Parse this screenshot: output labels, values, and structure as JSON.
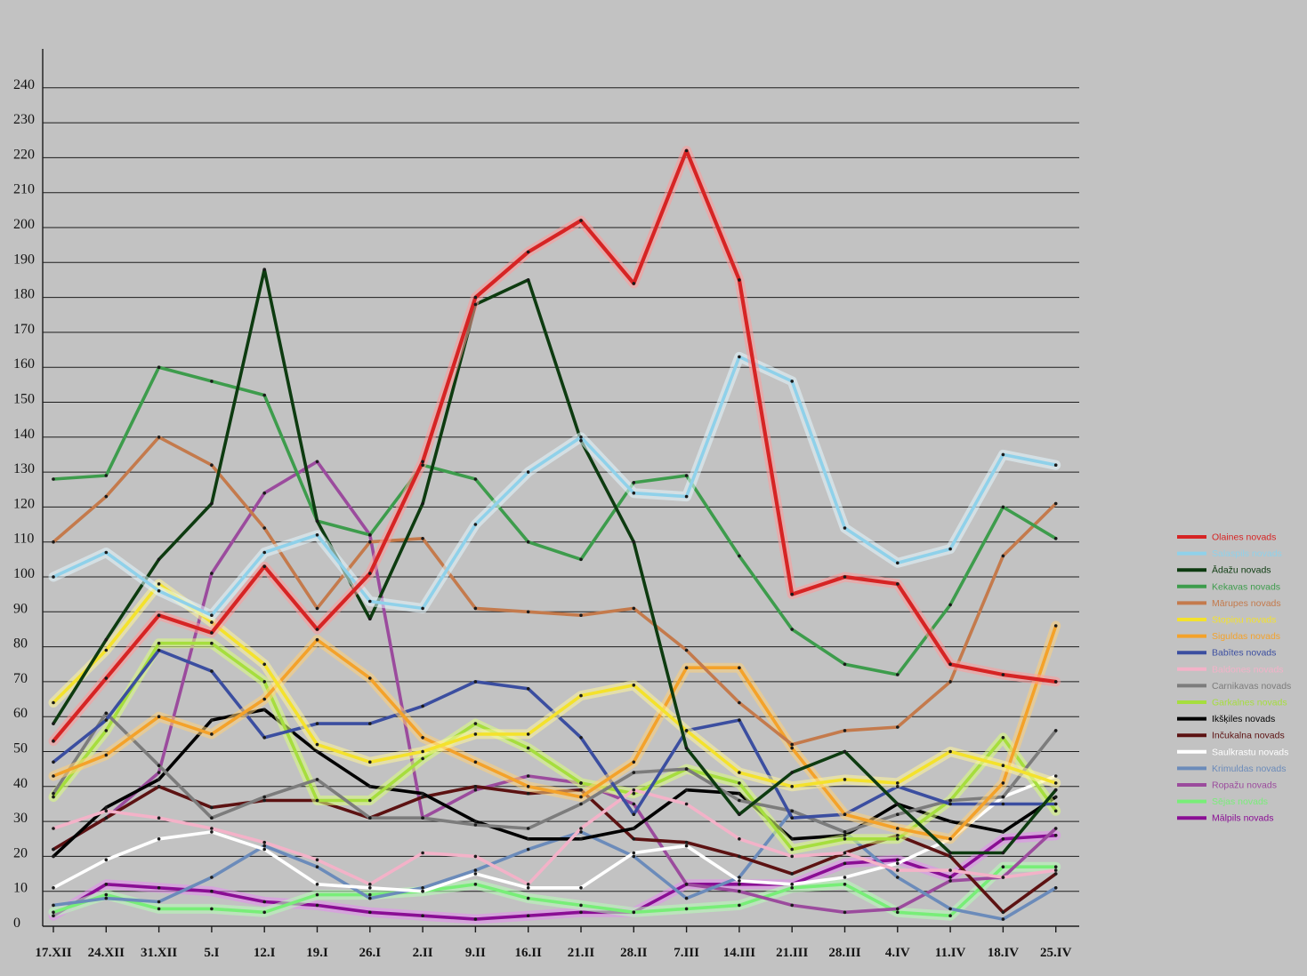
{
  "chart_data": {
    "type": "line",
    "categories": [
      "17.XII",
      "24.XII",
      "31.XII",
      "5.I",
      "12.I",
      "19.I",
      "26.I",
      "2.II",
      "9.II",
      "16.II",
      "21.II",
      "28.II",
      "7.III",
      "14.III",
      "21.III",
      "28.III",
      "4.IV",
      "11.IV",
      "18.IV",
      "25.IV"
    ],
    "ylim": [
      0,
      240
    ],
    "yticks": [
      0,
      10,
      20,
      30,
      40,
      50,
      60,
      70,
      80,
      90,
      100,
      110,
      120,
      130,
      140,
      150,
      160,
      170,
      180,
      190,
      200,
      210,
      220,
      230,
      240
    ],
    "grid": "horizontal",
    "legend_position": "right",
    "series": [
      {
        "name": "Olaines novads",
        "color": "#d62424",
        "values": [
          53,
          71,
          89,
          84,
          103,
          85,
          101,
          133,
          180,
          193,
          202,
          184,
          222,
          185,
          95,
          100,
          98,
          75,
          72,
          70
        ]
      },
      {
        "name": "Salaspils novads",
        "color": "#8fd1ea",
        "values": [
          100,
          107,
          96,
          89,
          107,
          112,
          93,
          91,
          115,
          130,
          140,
          124,
          123,
          163,
          156,
          114,
          104,
          108,
          135,
          132
        ]
      },
      {
        "name": "Ādažu novads",
        "color": "#0d3b10",
        "values": [
          58,
          82,
          105,
          121,
          188,
          116,
          88,
          121,
          178,
          185,
          139,
          110,
          51,
          32,
          44,
          50,
          35,
          21,
          21,
          39
        ]
      },
      {
        "name": "Kekavas novads",
        "color": "#3d9c4c",
        "values": [
          128,
          129,
          160,
          156,
          152,
          116,
          112,
          132,
          128,
          110,
          105,
          127,
          129,
          106,
          85,
          75,
          72,
          92,
          120,
          111
        ]
      },
      {
        "name": "Mārupes novads",
        "color": "#c47a4c",
        "values": [
          110,
          123,
          140,
          132,
          114,
          91,
          110,
          111,
          91,
          90,
          89,
          91,
          79,
          64,
          52,
          56,
          57,
          70,
          106,
          121
        ]
      },
      {
        "name": "Stopiņu novads",
        "color": "#f4e22c",
        "values": [
          64,
          79,
          98,
          87,
          75,
          52,
          47,
          50,
          55,
          55,
          66,
          69,
          56,
          44,
          40,
          42,
          41,
          50,
          46,
          41
        ]
      },
      {
        "name": "Siguldas novads",
        "color": "#f4a22a",
        "values": [
          43,
          49,
          60,
          55,
          65,
          82,
          71,
          54,
          47,
          40,
          37,
          47,
          74,
          74,
          51,
          32,
          28,
          25,
          41,
          86
        ]
      },
      {
        "name": "Babītes novads",
        "color": "#3b4ea0",
        "values": [
          47,
          59,
          79,
          73,
          54,
          58,
          58,
          63,
          70,
          68,
          54,
          32,
          56,
          59,
          31,
          32,
          40,
          35,
          35,
          35
        ]
      },
      {
        "name": "Baldones novads",
        "color": "#f3b2c8",
        "values": [
          28,
          33,
          31,
          28,
          24,
          19,
          12,
          21,
          20,
          12,
          28,
          39,
          35,
          25,
          20,
          21,
          16,
          16,
          14,
          16
        ]
      },
      {
        "name": "Carnikavas novads",
        "color": "#7c7c7c",
        "values": [
          38,
          61,
          46,
          31,
          37,
          42,
          31,
          31,
          29,
          28,
          35,
          44,
          45,
          36,
          33,
          27,
          32,
          36,
          37,
          56
        ]
      },
      {
        "name": "Garkalnes novads",
        "color": "#a6de3e",
        "values": [
          37,
          56,
          81,
          81,
          70,
          36,
          36,
          48,
          58,
          51,
          41,
          38,
          45,
          41,
          22,
          25,
          25,
          36,
          54,
          33
        ]
      },
      {
        "name": "Ikšķiles novads",
        "color": "#000000",
        "values": [
          20,
          34,
          42,
          59,
          62,
          50,
          40,
          38,
          30,
          25,
          25,
          28,
          39,
          38,
          25,
          26,
          35,
          30,
          27,
          37
        ]
      },
      {
        "name": "Inčukalna novads",
        "color": "#5c1212",
        "values": [
          22,
          31,
          40,
          34,
          36,
          36,
          31,
          37,
          40,
          38,
          39,
          25,
          24,
          20,
          15,
          21,
          26,
          20,
          4,
          15
        ]
      },
      {
        "name": "Saulkrastu novads",
        "color": "#ffffff",
        "values": [
          11,
          19,
          25,
          27,
          22,
          12,
          11,
          10,
          15,
          11,
          11,
          21,
          23,
          13,
          12,
          14,
          18,
          25,
          37,
          43
        ]
      },
      {
        "name": "Krimuldas novads",
        "color": "#6b8bba",
        "values": [
          6,
          8,
          7,
          14,
          23,
          17,
          8,
          11,
          16,
          22,
          27,
          20,
          8,
          14,
          33,
          27,
          14,
          5,
          2,
          11
        ]
      },
      {
        "name": "Ropažu novads",
        "color": "#9b4b9d",
        "values": [
          22,
          31,
          44,
          101,
          124,
          133,
          112,
          31,
          39,
          43,
          41,
          35,
          12,
          10,
          6,
          4,
          5,
          13,
          14,
          28
        ]
      },
      {
        "name": "Sējas novads",
        "color": "#78ee78",
        "values": [
          4,
          9,
          5,
          5,
          4,
          9,
          9,
          10,
          12,
          8,
          6,
          4,
          5,
          6,
          11,
          12,
          4,
          3,
          17,
          17
        ]
      },
      {
        "name": "Mālpils novads",
        "color": "#8a0e94",
        "values": [
          3,
          12,
          11,
          10,
          7,
          6,
          4,
          3,
          2,
          3,
          4,
          4,
          12,
          12,
          12,
          18,
          19,
          14,
          25,
          26
        ]
      }
    ]
  }
}
